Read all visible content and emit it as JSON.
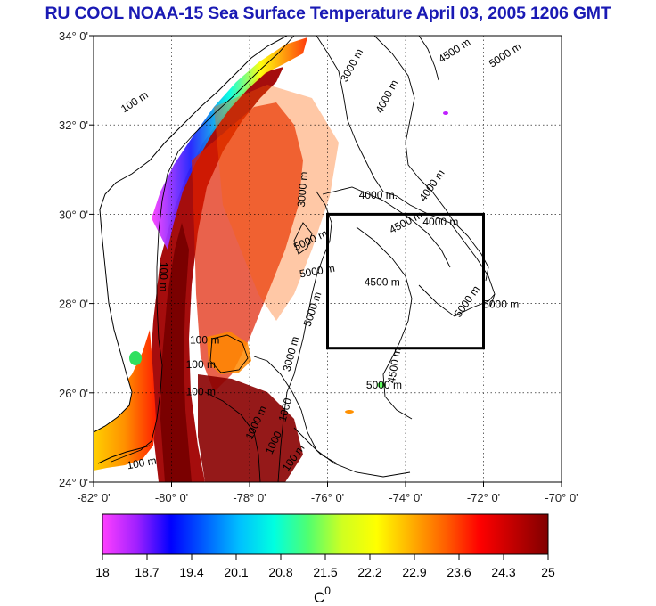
{
  "title": "RU COOL  NOAA-15 Sea Surface Temperature April 03, 2005 1206 GMT",
  "map": {
    "lon_range": [
      -82,
      -70
    ],
    "lat_range": [
      24,
      34
    ],
    "lon_ticks": [
      {
        "value": -82,
        "label": "-82° 0'"
      },
      {
        "value": -80,
        "label": "-80° 0'"
      },
      {
        "value": -78,
        "label": "-78° 0'"
      },
      {
        "value": -76,
        "label": "-76° 0'"
      },
      {
        "value": -74,
        "label": "-74° 0'"
      },
      {
        "value": -72,
        "label": "-72° 0'"
      },
      {
        "value": -70,
        "label": "-70° 0'"
      }
    ],
    "lat_ticks": [
      {
        "value": 34,
        "label": "34° 0'"
      },
      {
        "value": 32,
        "label": "32° 0'"
      },
      {
        "value": 30,
        "label": "30° 0'"
      },
      {
        "value": 28,
        "label": "28° 0'"
      },
      {
        "value": 26,
        "label": "26° 0'"
      },
      {
        "value": 24,
        "label": "24° 0'"
      }
    ],
    "grid": true,
    "study_box": {
      "lon_min": -76,
      "lon_max": -72,
      "lat_min": 27,
      "lat_max": 30
    },
    "contour_labels": [
      {
        "text": "3000 m",
        "lon": -75.3,
        "lat": 33.3,
        "rot": -62
      },
      {
        "text": "4500 m",
        "lon": -72.7,
        "lat": 33.6,
        "rot": -33
      },
      {
        "text": "5000 m",
        "lon": -71.4,
        "lat": 33.5,
        "rot": -33
      },
      {
        "text": "4000 m",
        "lon": -74.4,
        "lat": 32.6,
        "rot": -62
      },
      {
        "text": "100 m",
        "lon": -80.9,
        "lat": 32.45,
        "rot": -33
      },
      {
        "text": "3000 m",
        "lon": -76.55,
        "lat": 30.55,
        "rot": -85
      },
      {
        "text": "4000 m",
        "lon": -73.25,
        "lat": 30.6,
        "rot": -55
      },
      {
        "text": "4000 m.",
        "lon": -74.7,
        "lat": 30.35,
        "rot": 0
      },
      {
        "text": "4500 m",
        "lon": -73.95,
        "lat": 29.75,
        "rot": -28
      },
      {
        "text": "4000 m",
        "lon": -73.1,
        "lat": 29.75,
        "rot": 0
      },
      {
        "text": "5000 m",
        "lon": -76.4,
        "lat": 29.35,
        "rot": -25
      },
      {
        "text": "5000 m",
        "lon": -76.25,
        "lat": 28.65,
        "rot": -10
      },
      {
        "text": "5000 m",
        "lon": -76.3,
        "lat": 27.85,
        "rot": -72
      },
      {
        "text": "4500 m",
        "lon": -74.6,
        "lat": 28.4,
        "rot": 0
      },
      {
        "text": "5000 m",
        "lon": -72.35,
        "lat": 28.0,
        "rot": -55
      },
      {
        "text": "5000 m",
        "lon": -71.55,
        "lat": 27.9,
        "rot": 0
      },
      {
        "text": "100 m",
        "lon": -80.3,
        "lat": 28.6,
        "rot": 90
      },
      {
        "text": "3000 m",
        "lon": -76.85,
        "lat": 26.85,
        "rot": -75
      },
      {
        "text": "100 m",
        "lon": -79.15,
        "lat": 27.1,
        "rot": 0
      },
      {
        "text": "100 m",
        "lon": -79.25,
        "lat": 26.55,
        "rot": 0
      },
      {
        "text": "100 m",
        "lon": -79.25,
        "lat": 25.95,
        "rot": 0
      },
      {
        "text": "1000 m",
        "lon": -77.75,
        "lat": 25.3,
        "rot": -65
      },
      {
        "text": "4500 m",
        "lon": -74.2,
        "lat": 26.6,
        "rot": -80
      },
      {
        "text": "5000 m",
        "lon": -74.55,
        "lat": 26.1,
        "rot": 0
      },
      {
        "text": "100 m",
        "lon": -76.8,
        "lat": 24.5,
        "rot": -55
      },
      {
        "text": "100 m",
        "lon": -80.75,
        "lat": 24.35,
        "rot": -10
      },
      {
        "text": "1000",
        "lon": -77.3,
        "lat": 24.85,
        "rot": -65
      },
      {
        "text": "1000",
        "lon": -77.0,
        "lat": 25.6,
        "rot": -75
      }
    ]
  },
  "colorbar": {
    "tick_labels": [
      "18",
      "18.7",
      "19.4",
      "20.1",
      "20.8",
      "21.5",
      "22.2",
      "22.9",
      "23.6",
      "24.3",
      "25"
    ],
    "min": 18,
    "max": 25,
    "colors": [
      "#ff40ff",
      "#a020ff",
      "#0000ff",
      "#0060ff",
      "#00c0ff",
      "#00ffe0",
      "#50ff70",
      "#d0ff20",
      "#ffff00",
      "#ffb000",
      "#ff6000",
      "#ff0000",
      "#c00000",
      "#800000"
    ],
    "unit_label": "C",
    "unit_superscript": "0"
  }
}
